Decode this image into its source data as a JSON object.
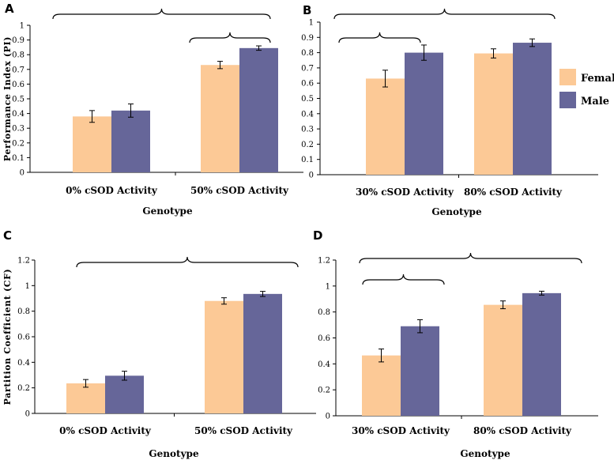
{
  "chart_data": [
    {
      "panel": "A",
      "type": "bar",
      "categories": [
        "0% cSOD Activity",
        "50% cSOD Activity"
      ],
      "series": [
        {
          "name": "Female",
          "values": [
            0.38,
            0.73
          ],
          "errors": [
            0.04,
            0.025
          ]
        },
        {
          "name": "Male",
          "values": [
            0.42,
            0.845
          ],
          "errors": [
            0.045,
            0.015
          ]
        }
      ],
      "ylim": [
        0,
        1
      ],
      "yticks": [
        "0",
        "0.1",
        "0.2",
        "0.3",
        "0.4",
        "0.5",
        "0.6",
        "0.7",
        "0.8",
        "0.9",
        "1"
      ],
      "xlabel": "Genotype",
      "ylabel": "Performance Index (PI)"
    },
    {
      "panel": "B",
      "type": "bar",
      "categories": [
        "30% cSOD Activity",
        "80% cSOD Activity"
      ],
      "series": [
        {
          "name": "Female",
          "values": [
            0.63,
            0.795
          ],
          "errors": [
            0.055,
            0.03
          ]
        },
        {
          "name": "Male",
          "values": [
            0.8,
            0.865
          ],
          "errors": [
            0.05,
            0.025
          ]
        }
      ],
      "ylim": [
        0,
        1
      ],
      "yticks": [
        "0",
        "0.1",
        "0.2",
        "0.3",
        "0.4",
        "0.5",
        "0.6",
        "0.7",
        "0.8",
        "0.9",
        "1"
      ],
      "xlabel": "Genotype",
      "ylabel": ""
    },
    {
      "panel": "C",
      "type": "bar",
      "categories": [
        "0% cSOD Activity",
        "50% cSOD Activity"
      ],
      "series": [
        {
          "name": "Female",
          "values": [
            0.235,
            0.88
          ],
          "errors": [
            0.03,
            0.025
          ]
        },
        {
          "name": "Male",
          "values": [
            0.295,
            0.935
          ],
          "errors": [
            0.035,
            0.02
          ]
        }
      ],
      "ylim": [
        0,
        1.2
      ],
      "yticks": [
        "0",
        "0.2",
        "0.4",
        "0.6",
        "0.8",
        "1",
        "1.2"
      ],
      "xlabel": "Genotype",
      "ylabel": "Partition Coefficient (CF)"
    },
    {
      "panel": "D",
      "type": "bar",
      "categories": [
        "30% cSOD Activity",
        "80% cSOD Activity"
      ],
      "series": [
        {
          "name": "Female",
          "values": [
            0.465,
            0.855
          ],
          "errors": [
            0.05,
            0.03
          ]
        },
        {
          "name": "Male",
          "values": [
            0.69,
            0.945
          ],
          "errors": [
            0.05,
            0.015
          ]
        }
      ],
      "ylim": [
        0,
        1.2
      ],
      "yticks": [
        "0",
        "0.2",
        "0.4",
        "0.6",
        "0.8",
        "1",
        "1.2"
      ],
      "xlabel": "Genotype",
      "ylabel": ""
    }
  ],
  "legend": [
    {
      "label": "Female",
      "color": "#fcc996"
    },
    {
      "label": "Male",
      "color": "#666699"
    }
  ],
  "colors": {
    "female": "#fcc996",
    "male": "#666699"
  }
}
